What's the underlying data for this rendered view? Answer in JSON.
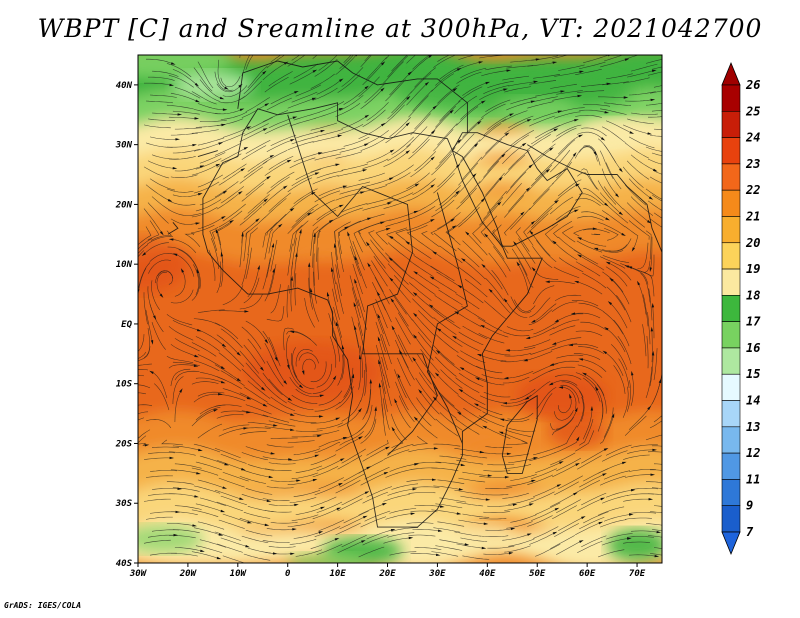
{
  "title": "WBPT [C] and Sreamline at 300hPa, VT: 2021042700",
  "credit": "GrADS: IGES/COLA",
  "map": {
    "lat_ticks": [
      "40N",
      "30N",
      "20N",
      "10N",
      "EQ",
      "10S",
      "20S",
      "30S",
      "40S"
    ],
    "lon_ticks": [
      "30W",
      "20W",
      "10W",
      "0",
      "10E",
      "20E",
      "30E",
      "40E",
      "50E",
      "60E",
      "70E"
    ],
    "lat_range": [
      -40,
      45
    ],
    "lon_range": [
      -30,
      75
    ]
  },
  "colorbar": {
    "labels": [
      "26",
      "25",
      "24",
      "23",
      "22",
      "21",
      "20",
      "19",
      "18",
      "17",
      "16",
      "15",
      "14",
      "13",
      "12",
      "11",
      "9",
      "7"
    ],
    "colors": [
      "#a80000",
      "#c81e08",
      "#e8420e",
      "#f2671a",
      "#f58a1a",
      "#f8ae2e",
      "#fcd35a",
      "#fbe9a0",
      "#3db73d",
      "#78d260",
      "#aee8a0",
      "#e6faff",
      "#a8d6f8",
      "#78b8ee",
      "#5098e4",
      "#2e78d8",
      "#1a5ecc"
    ],
    "max_arrow_color": "#a00000",
    "min_arrow_color": "#1e64dc"
  },
  "field_colors": {
    "green_dark": "#3fb43f",
    "green_mid": "#7dd264",
    "green_light": "#b2e8a2",
    "yellow_light": "#fbeaa6",
    "yellow": "#fad67a",
    "orange_light": "#f5b24a",
    "orange": "#f08a2a",
    "orange_deep": "#e8671c",
    "red_orange": "#e04a14"
  }
}
